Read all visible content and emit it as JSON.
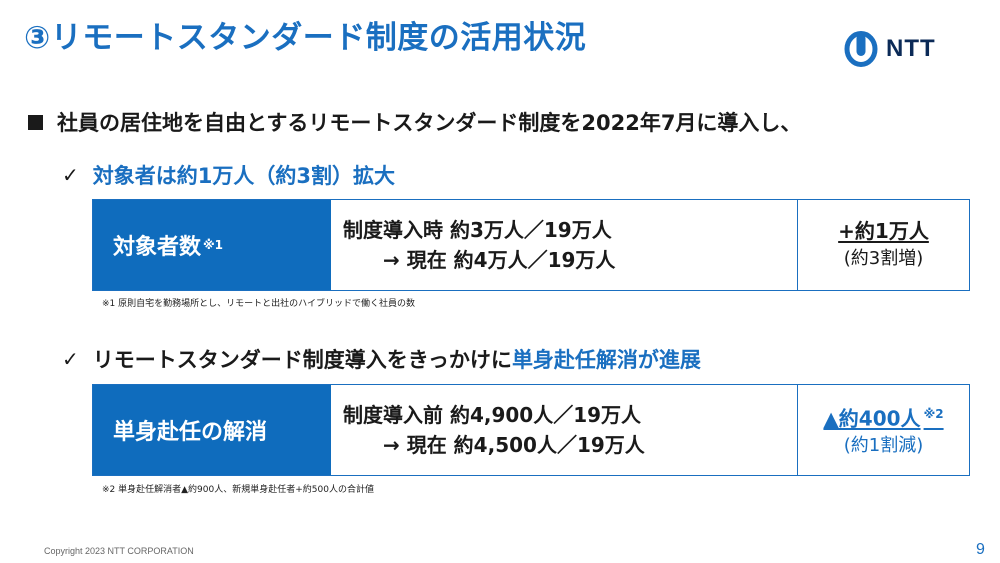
{
  "title": "③リモートスタンダード制度の活用状況",
  "logo": {
    "text": "NTT",
    "icon": "ntt-logo-icon",
    "color": "#0b2a57"
  },
  "intro": {
    "bullet_icon": "square-bullet-icon",
    "text": "社員の居住地を自由とするリモートスタンダード制度を2022年7月に導入し、"
  },
  "point1": {
    "check_icon": "check-icon",
    "text": "対象者は約1万人（約3割）拡大"
  },
  "box1": {
    "label": "対象者数",
    "label_note": "※1",
    "line1": "制度導入時 約3万人／19万人",
    "line2": "→ 現在 約4万人／19万人",
    "result": "+約1万人",
    "result_sub": "(約3割増)"
  },
  "footnote1": "※1 原則自宅を勤務場所とし、リモートと出社のハイブリッドで働く社員の数",
  "point2": {
    "check_icon": "check-icon",
    "text_plain": "リモートスタンダード制度導入をきっかけに",
    "text_highlight": "単身赴任解消が進展"
  },
  "box2": {
    "label": "単身赴任の解消",
    "line1": "制度導入前 約4,900人／19万人",
    "line2": "→ 現在 約4,500人／19万人",
    "result": "▲約400人",
    "result_note": "※2",
    "result_sub": "(約1割減)"
  },
  "footnote2": "※2 単身赴任解消者▲約900人、新規単身赴任者+約500人の合計値",
  "copyright": "Copyright 2023 NTT CORPORATION",
  "page_number": "9",
  "colors": {
    "accent": "#1a6fc0",
    "label_bg": "#0f6cbd",
    "text": "#1a1a1a"
  }
}
